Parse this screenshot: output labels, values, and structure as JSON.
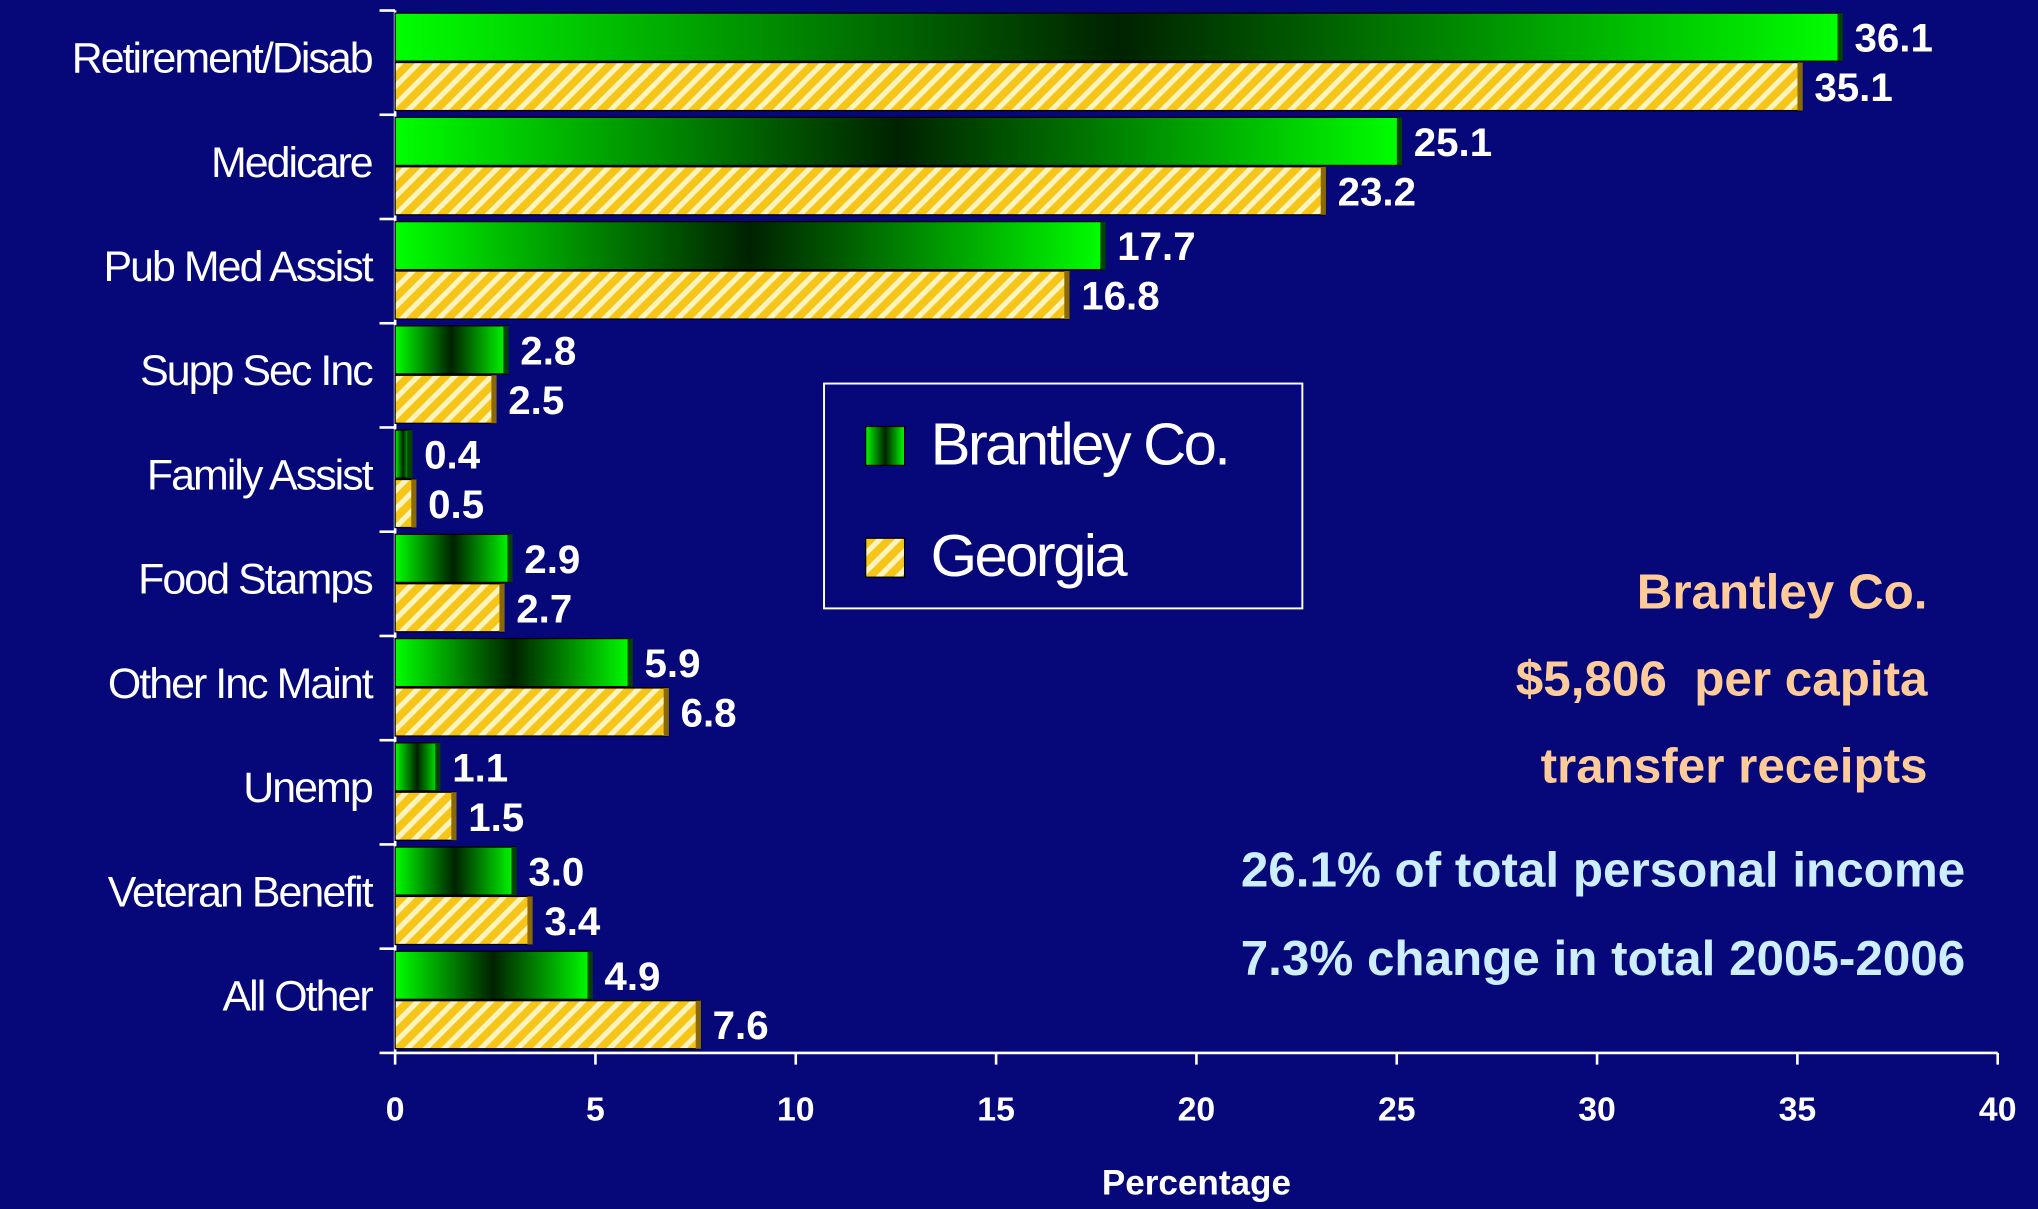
{
  "chart_data": {
    "type": "barh",
    "categories": [
      "Retirement/Disab",
      "Medicare",
      "Pub Med Assist",
      "Supp Sec Inc",
      "Family Assist",
      "Food Stamps",
      "Other Inc Maint",
      "Unemp",
      "Veteran Benefit",
      "All Other"
    ],
    "series": [
      {
        "name": "Brantley Co.",
        "color": "#00ff00",
        "values": [
          36.1,
          25.1,
          17.7,
          2.8,
          0.4,
          2.9,
          5.9,
          1.1,
          3.0,
          4.9
        ],
        "value_labels": [
          "36.1",
          "25.1",
          "17.7",
          "2.8",
          "0.4",
          "2.9",
          "5.9",
          "1.1",
          "3.0",
          "4.9"
        ]
      },
      {
        "name": "Georgia",
        "color": "#f5c518",
        "values": [
          35.1,
          23.2,
          16.8,
          2.5,
          0.5,
          2.7,
          6.8,
          1.5,
          3.4,
          7.6
        ],
        "value_labels": [
          "35.1",
          "23.2",
          "16.8",
          "2.5",
          "0.5",
          "2.7",
          "6.8",
          "1.5",
          "3.4",
          "7.6"
        ]
      }
    ],
    "xlabel": "Percentage",
    "xlim": [
      0,
      40
    ],
    "xticks": [
      0,
      5,
      10,
      15,
      20,
      25,
      30,
      35,
      40
    ],
    "legend": "center",
    "annotations": [
      {
        "text": "Brantley Co.",
        "color": "#ffcc99"
      },
      {
        "text": "$5,806  per capita",
        "color": "#ffcc99"
      },
      {
        "text": "transfer receipts",
        "color": "#ffcc99"
      },
      {
        "text": "26.1% of total personal income",
        "color": "#cceeff"
      },
      {
        "text": "7.3% change in total 2005-2006",
        "color": "#cceeff"
      }
    ]
  }
}
